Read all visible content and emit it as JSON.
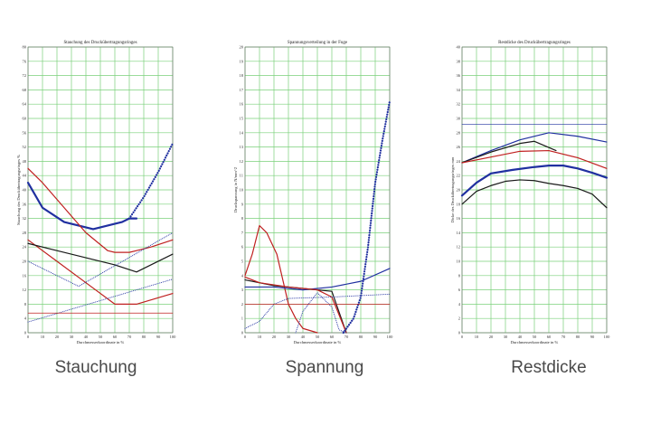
{
  "captions": [
    "Stauchung",
    "Spannung",
    "Restdicke"
  ],
  "chart_data": [
    {
      "type": "line",
      "title": "Stauchung des Druckübertragungsringes",
      "xlabel": "Durchmesserkoordinate in %",
      "ylabel": "Stauchung des Druckübertragungsringes %",
      "xlim": [
        0,
        100
      ],
      "ylim": [
        0,
        80
      ],
      "xticks": [
        0,
        10,
        20,
        30,
        40,
        50,
        60,
        70,
        80,
        90,
        100
      ],
      "yticks": [
        0,
        4,
        8,
        12,
        16,
        20,
        24,
        28,
        32,
        36,
        40,
        44,
        48,
        52,
        56,
        60,
        64,
        68,
        72,
        76,
        80
      ],
      "grid": true,
      "series": [
        {
          "color": "#2030a0",
          "style": "solid-thick",
          "x": [
            0,
            10,
            25,
            45,
            65,
            70,
            75
          ],
          "y": [
            42,
            35,
            31,
            29,
            31,
            32,
            32
          ]
        },
        {
          "color": "#2030a0",
          "style": "dotted-thick",
          "x": [
            70,
            80,
            90,
            100
          ],
          "y": [
            32,
            38,
            45,
            53
          ]
        },
        {
          "color": "#c02020",
          "style": "solid",
          "x": [
            0,
            10,
            25,
            40,
            55,
            60,
            70,
            75,
            85,
            100
          ],
          "y": [
            46,
            42,
            35,
            28,
            23,
            22.5,
            22.5,
            23,
            24,
            26
          ]
        },
        {
          "color": "#c02020",
          "style": "solid",
          "x": [
            0,
            20,
            40,
            60,
            75,
            100
          ],
          "y": [
            26,
            20,
            14,
            8,
            8,
            11
          ]
        },
        {
          "color": "#1a1a1a",
          "style": "solid",
          "x": [
            0,
            20,
            40,
            60,
            75,
            100
          ],
          "y": [
            25,
            23,
            21,
            19,
            17,
            22
          ]
        },
        {
          "color": "#2030a0",
          "style": "dotted",
          "x": [
            0,
            35,
            100
          ],
          "y": [
            20,
            13,
            28
          ]
        },
        {
          "color": "#2030a0",
          "style": "dotted",
          "x": [
            0,
            100
          ],
          "y": [
            3,
            15
          ]
        },
        {
          "color": "#c02020",
          "style": "solid-thin",
          "x": [
            0,
            100
          ],
          "y": [
            5.5,
            5.5
          ]
        }
      ]
    },
    {
      "type": "line",
      "title": "Spannungsverteilung in der Fuge",
      "xlabel": "Durchmesserkoordinate in %",
      "ylabel": "Druckspannung in N/mm^2",
      "xlim": [
        0,
        100
      ],
      "ylim": [
        0,
        20
      ],
      "xticks": [
        0,
        10,
        20,
        30,
        40,
        50,
        60,
        70,
        80,
        90,
        100
      ],
      "yticks": [
        0,
        1,
        2,
        3,
        4,
        5,
        6,
        7,
        8,
        9,
        10,
        11,
        12,
        13,
        14,
        15,
        16,
        17,
        18,
        19,
        20
      ],
      "grid": true,
      "series": [
        {
          "color": "#c02020",
          "style": "solid",
          "x": [
            0,
            5,
            10,
            15,
            22,
            30,
            35,
            40,
            50
          ],
          "y": [
            4,
            5.5,
            7.5,
            7,
            5.5,
            2,
            1,
            0.3,
            0
          ]
        },
        {
          "color": "#1a1a1a",
          "style": "solid",
          "x": [
            0,
            20,
            40,
            60,
            70
          ],
          "y": [
            3.7,
            3.3,
            3.1,
            2.9,
            0
          ]
        },
        {
          "color": "#2030a0",
          "style": "solid",
          "x": [
            0,
            20,
            40,
            60,
            80,
            100
          ],
          "y": [
            3.2,
            3.2,
            3.0,
            3.2,
            3.6,
            4.5
          ]
        },
        {
          "color": "#c02020",
          "style": "solid",
          "x": [
            0,
            10,
            30,
            50,
            60,
            70
          ],
          "y": [
            3.9,
            3.5,
            3.2,
            3.0,
            2.5,
            0
          ]
        },
        {
          "color": "#2030a0",
          "style": "dotted",
          "x": [
            0,
            10,
            20,
            30,
            60,
            100
          ],
          "y": [
            0.3,
            0.8,
            2.0,
            2.4,
            2.5,
            2.7
          ]
        },
        {
          "color": "#2030a0",
          "style": "dotted",
          "x": [
            35,
            40,
            50,
            60,
            65,
            70
          ],
          "y": [
            0,
            1.5,
            2.8,
            1.8,
            0.2,
            0
          ]
        },
        {
          "color": "#2030a0",
          "style": "dotted-thick",
          "x": [
            68,
            75,
            80,
            85,
            90,
            95,
            100
          ],
          "y": [
            0,
            1.0,
            2.5,
            6,
            10.5,
            13.5,
            16.2
          ]
        },
        {
          "color": "#c02020",
          "style": "solid-thin",
          "x": [
            0,
            100
          ],
          "y": [
            2.0,
            2.0
          ]
        }
      ]
    },
    {
      "type": "line",
      "title": "Restdicke des Druckübertragungsringes",
      "xlabel": "Durchmesserkoordinate in %",
      "ylabel": "Dicke des Druckübertragungsringes mm",
      "xlim": [
        0,
        100
      ],
      "ylim": [
        0,
        40
      ],
      "xticks": [
        0,
        10,
        20,
        30,
        40,
        50,
        60,
        70,
        80,
        90,
        100
      ],
      "yticks": [
        0,
        2,
        4,
        6,
        8,
        10,
        12,
        14,
        16,
        18,
        20,
        22,
        24,
        26,
        28,
        30,
        32,
        34,
        36,
        38,
        40
      ],
      "grid": true,
      "series": [
        {
          "color": "#2030a0",
          "style": "solid-thin",
          "x": [
            0,
            100
          ],
          "y": [
            29.2,
            29.2
          ]
        },
        {
          "color": "#2030a0",
          "style": "solid",
          "x": [
            0,
            20,
            40,
            60,
            80,
            100
          ],
          "y": [
            23.8,
            25.5,
            27,
            28,
            27.5,
            26.7
          ]
        },
        {
          "color": "#1a1a1a",
          "style": "solid",
          "x": [
            0,
            20,
            40,
            50,
            65
          ],
          "y": [
            23.8,
            25.3,
            26.5,
            26.8,
            25.5
          ]
        },
        {
          "color": "#c02020",
          "style": "solid",
          "x": [
            0,
            20,
            40,
            60,
            80,
            100
          ],
          "y": [
            23.8,
            24.6,
            25.4,
            25.5,
            24.5,
            23
          ]
        },
        {
          "color": "#2030a0",
          "style": "solid-thick",
          "x": [
            0,
            10,
            20,
            35,
            50,
            60,
            70,
            80,
            90,
            100
          ],
          "y": [
            19.2,
            21,
            22.3,
            22.8,
            23.2,
            23.4,
            23.4,
            23,
            22.4,
            21.7
          ]
        },
        {
          "color": "#1a1a1a",
          "style": "solid",
          "x": [
            0,
            10,
            20,
            30,
            40,
            50,
            60,
            70,
            80,
            90,
            100
          ],
          "y": [
            18,
            19.8,
            20.6,
            21.2,
            21.4,
            21.3,
            20.9,
            20.6,
            20.2,
            19.4,
            17.5
          ]
        }
      ]
    }
  ]
}
